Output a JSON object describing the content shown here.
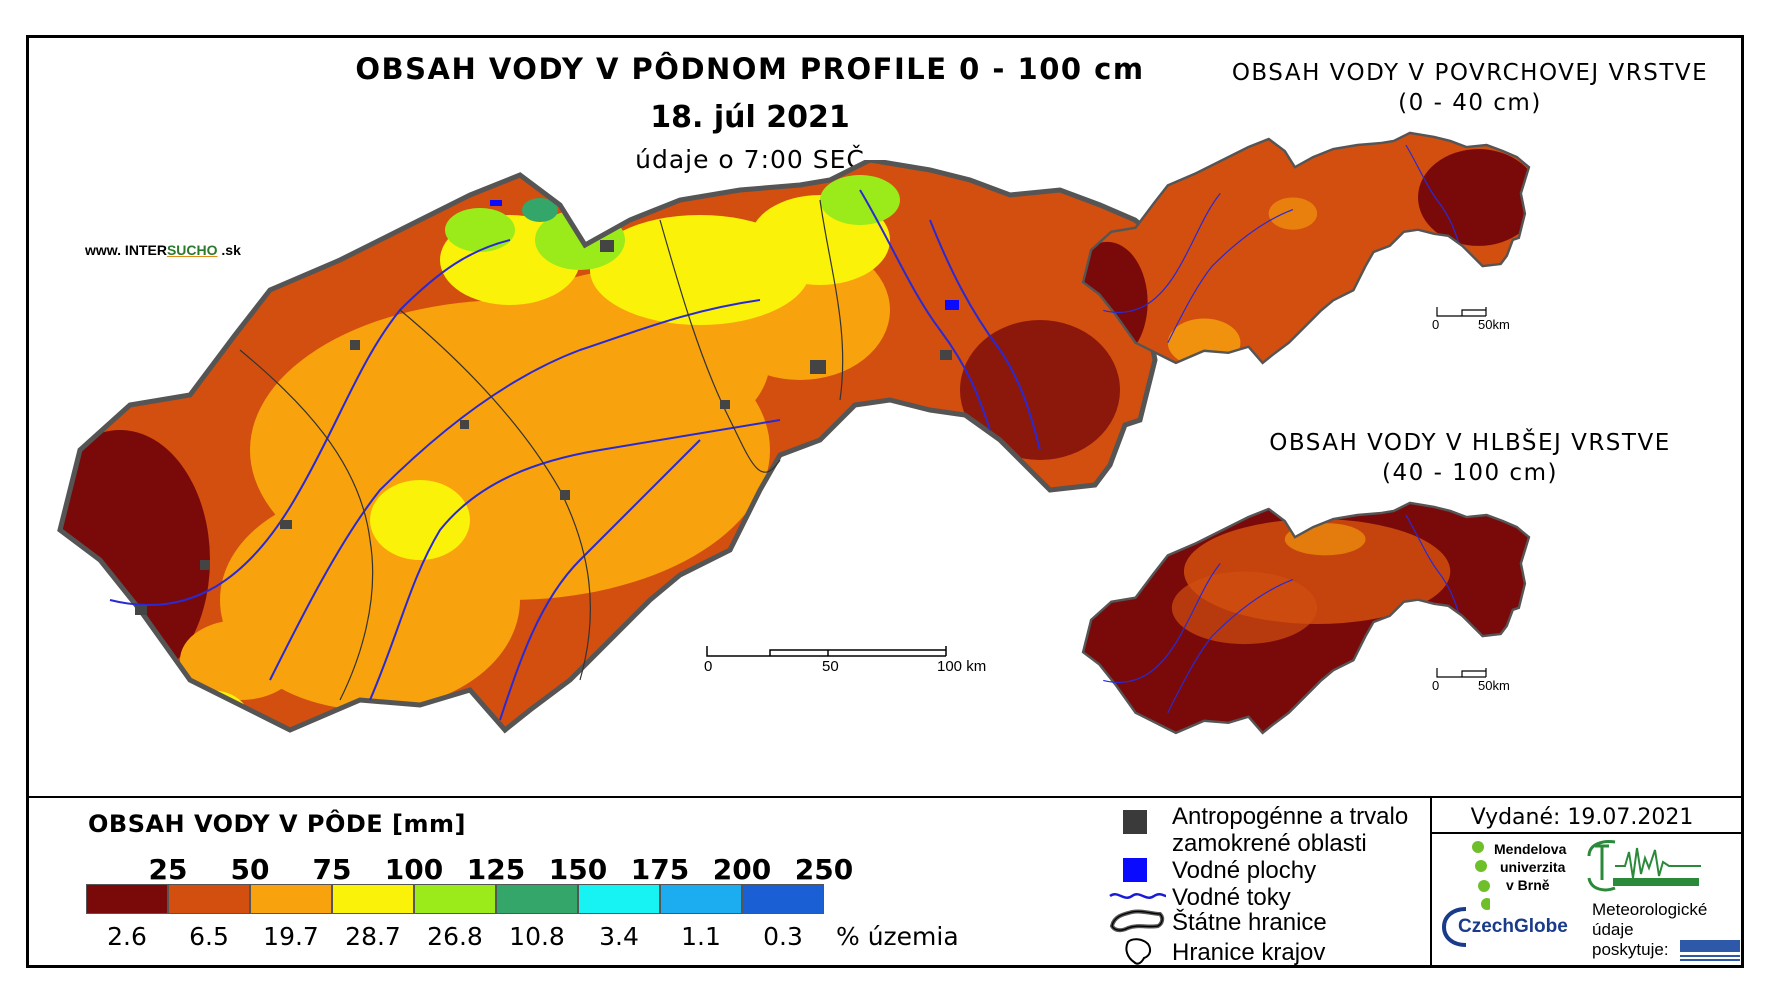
{
  "header": {
    "title": "OBSAH VODY V PÔDNOM PROFILE 0 - 100 cm",
    "date": "18. júl 2021",
    "time": "údaje o 7:00 SEČ"
  },
  "brand": {
    "prefix": "www. INTER",
    "mid": "SUCHO",
    "suffix": " .sk"
  },
  "surface_map": {
    "title_line1": "OBSAH VODY V POVRCHOVEJ VRSTVE",
    "title_line2": "(0 - 40 cm)"
  },
  "deep_map": {
    "title_line1": "OBSAH VODY V HLBŠEJ VRSTVE",
    "title_line2": "(40 - 100 cm)"
  },
  "scale_main": {
    "labels": [
      "0",
      "50",
      "100 km"
    ]
  },
  "scale_small": {
    "labels": [
      "0",
      "50km"
    ]
  },
  "legend": {
    "title": "OBSAH VODY V PÔDE [mm]",
    "thresholds": [
      "25",
      "50",
      "75",
      "100",
      "125",
      "150",
      "175",
      "200",
      "250"
    ],
    "colors": [
      "#7a0a0a",
      "#d24f0f",
      "#f8a20d",
      "#fbf20a",
      "#9bea1a",
      "#35a66a",
      "#17f3f3",
      "#1cacf0",
      "#1a5fd4"
    ],
    "percentages": [
      "2.6",
      "6.5",
      "19.7",
      "28.7",
      "26.8",
      "10.8",
      "3.4",
      "1.1",
      "0.3"
    ],
    "percent_unit": "% územia"
  },
  "symbols": {
    "anthropogenic_line1": "Antropogénne a trvalo",
    "anthropogenic_line2": "zamokrené oblasti",
    "water_bodies": "Vodné plochy",
    "rivers": "Vodné toky",
    "state_border": "Štátne hranice",
    "region_border": "Hranice krajov"
  },
  "issued": "Vydané: 19.07.2021",
  "logos": {
    "mendel_line1": "Mendelova",
    "mendel_line2": "univerzita",
    "mendel_line3": "v Brně",
    "czechglobe": "CzechGlobe",
    "meteo_line1": "Meteorologické",
    "meteo_line2": "údaje",
    "meteo_line3": "poskytuje:"
  }
}
